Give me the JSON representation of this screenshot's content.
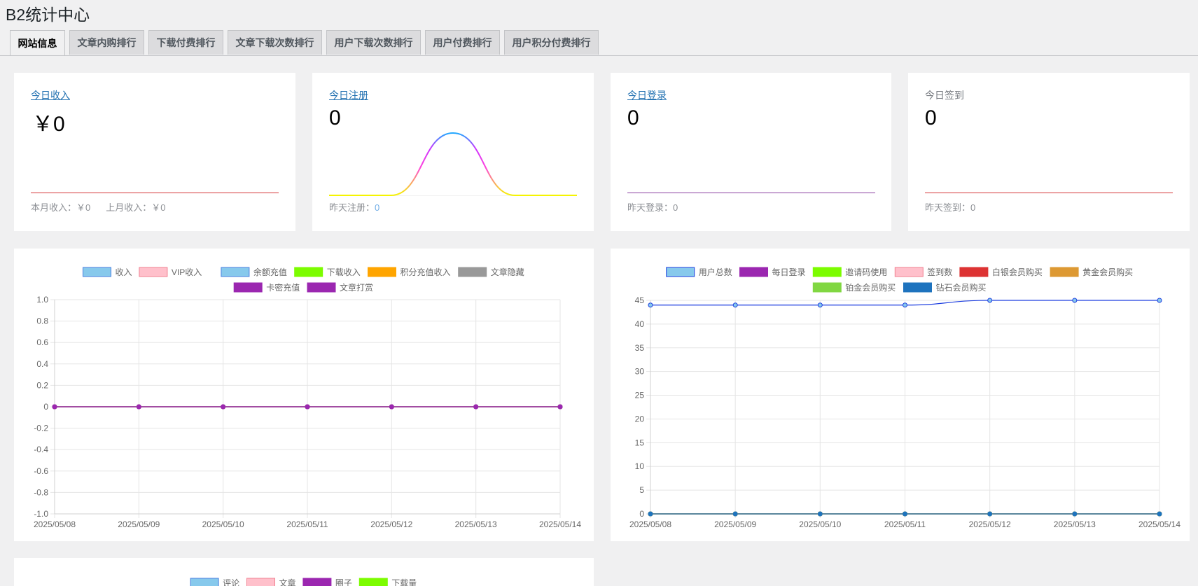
{
  "page": {
    "title": "B2统计中心"
  },
  "tabs": [
    {
      "label": "网站信息",
      "active": true
    },
    {
      "label": "文章内购排行"
    },
    {
      "label": "下载付费排行"
    },
    {
      "label": "文章下载次数排行"
    },
    {
      "label": "用户下载次数排行"
    },
    {
      "label": "用户付费排行"
    },
    {
      "label": "用户积分付费排行"
    }
  ],
  "stats": [
    {
      "label": "今日收入",
      "value": "￥0",
      "foot1_label": "本月收入：",
      "foot1_value": "￥0",
      "foot2_label": "上月收入：",
      "foot2_value": "￥0",
      "line_color": "#d63638"
    },
    {
      "label": "今日注册",
      "value": "0",
      "foot1_label": "昨天注册：",
      "foot1_value": "0",
      "sparkline": [
        0,
        0,
        1,
        0,
        0
      ]
    },
    {
      "label": "今日登录",
      "value": "0",
      "foot1_label": "昨天登录：",
      "foot1_value": "0",
      "line_color": "#8a3fa0"
    },
    {
      "label": "今日签到",
      "value": "0",
      "foot1_label": "昨天签到：",
      "foot1_value": "0",
      "line_color": "#d63638"
    }
  ],
  "chart_data": [
    {
      "type": "line",
      "title": "",
      "categories": [
        "2025/05/08",
        "2025/05/09",
        "2025/05/10",
        "2025/05/11",
        "2025/05/12",
        "2025/05/13",
        "2025/05/14"
      ],
      "ylim": [
        -1.0,
        1.0
      ],
      "yticks": [
        "1.0",
        "0.8",
        "0.6",
        "0.4",
        "0.2",
        "0",
        "-0.2",
        "-0.4",
        "-0.6",
        "-0.8",
        "-1.0"
      ],
      "series": [
        {
          "name": "收入",
          "color": "#87c9ec",
          "border": "#4a7fe0",
          "values": [
            0,
            0,
            0,
            0,
            0,
            0,
            0
          ]
        },
        {
          "name": "VIP收入",
          "color": "#ffc0cb",
          "border": "#f08090",
          "values": [
            0,
            0,
            0,
            0,
            0,
            0,
            0
          ]
        },
        {
          "name": "余额充值",
          "color": "#87c9ec",
          "border": "#4a7fe0",
          "values": [
            0,
            0,
            0,
            0,
            0,
            0,
            0
          ]
        },
        {
          "name": "下载收入",
          "color": "#7cfc00",
          "border": "#7cfc00",
          "values": [
            0,
            0,
            0,
            0,
            0,
            0,
            0
          ]
        },
        {
          "name": "积分充值收入",
          "color": "#ffa500",
          "border": "#ffa500",
          "values": [
            0,
            0,
            0,
            0,
            0,
            0,
            0
          ]
        },
        {
          "name": "文章隐藏",
          "color": "#999999",
          "border": "#999999",
          "values": [
            0,
            0,
            0,
            0,
            0,
            0,
            0
          ]
        },
        {
          "name": "卡密充值",
          "color": "#9b27b0",
          "border": "#9b27b0",
          "values": [
            0,
            0,
            0,
            0,
            0,
            0,
            0
          ]
        },
        {
          "name": "文章打赏",
          "color": "#9b27b0",
          "border": "#9b27b0",
          "values": [
            0,
            0,
            0,
            0,
            0,
            0,
            0
          ]
        }
      ]
    },
    {
      "type": "line",
      "title": "",
      "categories": [
        "2025/05/08",
        "2025/05/09",
        "2025/05/10",
        "2025/05/11",
        "2025/05/12",
        "2025/05/13",
        "2025/05/14"
      ],
      "ylim": [
        0,
        45
      ],
      "yticks": [
        "45",
        "40",
        "35",
        "30",
        "25",
        "20",
        "15",
        "10",
        "5",
        "0"
      ],
      "series": [
        {
          "name": "用户总数",
          "color": "#87c9ec",
          "border": "#1e3fe0",
          "values": [
            44,
            44,
            44,
            44,
            45,
            45,
            45
          ]
        },
        {
          "name": "每日登录",
          "color": "#9b27b0",
          "border": "#9b27b0",
          "values": [
            0,
            0,
            0,
            0,
            0,
            0,
            0
          ]
        },
        {
          "name": "邀请码使用",
          "color": "#7cfc00",
          "border": "#7cfc00",
          "values": [
            0,
            0,
            0,
            0,
            0,
            0,
            0
          ]
        },
        {
          "name": "签到数",
          "color": "#ffc0cb",
          "border": "#f08090",
          "values": [
            0,
            0,
            0,
            0,
            0,
            0,
            0
          ]
        },
        {
          "name": "白银会员购买",
          "color": "#dd3333",
          "border": "#dd3333",
          "values": [
            0,
            0,
            0,
            0,
            0,
            0,
            0
          ]
        },
        {
          "name": "黄金会员购买",
          "color": "#dd9933",
          "border": "#dd9933",
          "values": [
            0,
            0,
            0,
            0,
            0,
            0,
            0
          ]
        },
        {
          "name": "铂金会员购买",
          "color": "#81d742",
          "border": "#81d742",
          "values": [
            0,
            0,
            0,
            0,
            0,
            0,
            0
          ]
        },
        {
          "name": "钻石会员购买",
          "color": "#1e73be",
          "border": "#1e73be",
          "values": [
            0,
            0,
            0,
            0,
            0,
            0,
            0
          ]
        }
      ]
    },
    {
      "type": "line",
      "title": "",
      "categories": [],
      "series": [
        {
          "name": "评论",
          "color": "#87c9ec",
          "border": "#4a7fe0",
          "values": []
        },
        {
          "name": "文章",
          "color": "#ffc0cb",
          "border": "#f08090",
          "values": []
        },
        {
          "name": "圈子",
          "color": "#9b27b0",
          "border": "#9b27b0",
          "values": []
        },
        {
          "name": "下载量",
          "color": "#7cfc00",
          "border": "#7cfc00",
          "values": []
        }
      ]
    }
  ]
}
